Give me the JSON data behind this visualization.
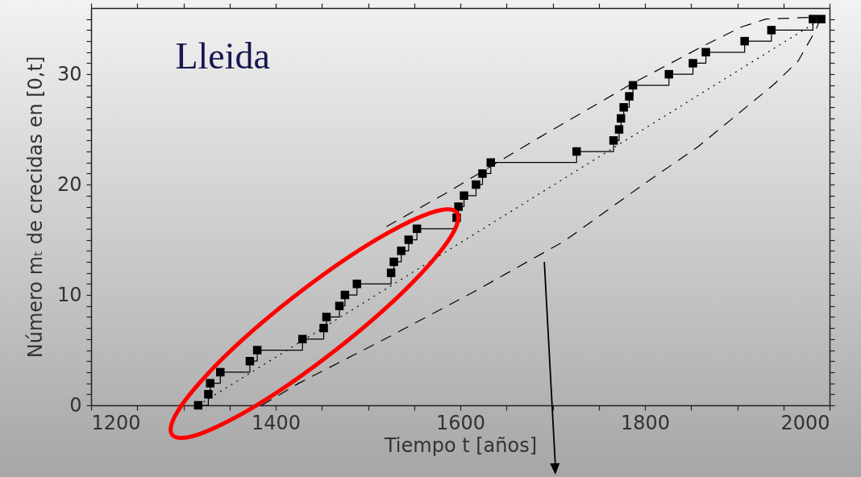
{
  "chart_data": {
    "type": "step",
    "title": "Lleida",
    "xlabel": "Tiempo t [años]",
    "ylabel": "Número mₜ de crecidas en [0,t]",
    "xlim": [
      1200,
      2000
    ],
    "ylim": [
      0,
      36
    ],
    "xticks": [
      1200,
      {
        "value": 1250,
        "label": null
      },
      {
        "value": 1300,
        "label": null
      },
      {
        "value": 1350,
        "label": null
      },
      1400,
      {
        "value": 1450,
        "label": null
      },
      {
        "value": 1500,
        "label": null
      },
      {
        "value": 1550,
        "label": null
      },
      1600,
      {
        "value": 1650,
        "label": null
      },
      {
        "value": 1700,
        "label": null
      },
      {
        "value": 1750,
        "label": null
      },
      1800,
      {
        "value": 1850,
        "label": null
      },
      {
        "value": 1900,
        "label": null
      },
      {
        "value": 1950,
        "label": null
      },
      2000
    ],
    "yticks": [
      0,
      {
        "value": 1,
        "label": null
      },
      {
        "value": 2,
        "label": null
      },
      {
        "value": 3,
        "label": null
      },
      {
        "value": 4,
        "label": null
      },
      {
        "value": 5,
        "label": null
      },
      {
        "value": 6,
        "label": null
      },
      {
        "value": 7,
        "label": null
      },
      {
        "value": 8,
        "label": null
      },
      {
        "value": 9,
        "label": null
      },
      10,
      {
        "value": 11,
        "label": null
      },
      {
        "value": 12,
        "label": null
      },
      {
        "value": 13,
        "label": null
      },
      {
        "value": 14,
        "label": null
      },
      {
        "value": 15,
        "label": null
      },
      {
        "value": 16,
        "label": null
      },
      {
        "value": 17,
        "label": null
      },
      {
        "value": 18,
        "label": null
      },
      {
        "value": 19,
        "label": null
      },
      20,
      {
        "value": 21,
        "label": null
      },
      {
        "value": 22,
        "label": null
      },
      {
        "value": 23,
        "label": null
      },
      {
        "value": 24,
        "label": null
      },
      {
        "value": 25,
        "label": null
      },
      {
        "value": 26,
        "label": null
      },
      {
        "value": 27,
        "label": null
      },
      {
        "value": 28,
        "label": null
      },
      {
        "value": 29,
        "label": null
      },
      30,
      {
        "value": 31,
        "label": null
      },
      {
        "value": 32,
        "label": null
      },
      {
        "value": 33,
        "label": null
      },
      {
        "value": 34,
        "label": null
      },
      {
        "value": 35,
        "label": null
      }
    ],
    "series": [
      {
        "type": "step",
        "color": "#000000",
        "marker": "square",
        "line_style": "solid",
        "x": [
          1316,
          1327,
          1329,
          1340,
          1372,
          1380,
          1429,
          1452,
          1455,
          1469,
          1475,
          1488,
          1525,
          1528,
          1536,
          1544,
          1553,
          1596,
          1598,
          1604,
          1617,
          1624,
          1633,
          1726,
          1766,
          1772,
          1774,
          1777,
          1783,
          1787,
          1826,
          1852,
          1866,
          1908,
          1937,
          1982,
          1991
        ],
        "values": [
          0,
          1,
          2,
          3,
          4,
          5,
          6,
          7,
          8,
          9,
          10,
          11,
          12,
          13,
          14,
          15,
          16,
          17,
          18,
          19,
          20,
          21,
          22,
          23,
          24,
          25,
          26,
          27,
          28,
          29,
          30,
          31,
          32,
          33,
          34,
          35,
          35
        ]
      },
      {
        "type": "line",
        "color": "#000000",
        "marker": "none",
        "line_style": "dotted",
        "x": [
          1316,
          1991
        ],
        "values": [
          0,
          35
        ]
      },
      {
        "type": "line",
        "color": "#000000",
        "marker": "none",
        "line_style": "dashed",
        "x": [
          1520,
          1584,
          1680,
          1785,
          1864,
          1905,
          1931,
          1990
        ],
        "values": [
          16.2,
          19.2,
          24.0,
          29.1,
          32.6,
          34.3,
          35,
          35.2
        ]
      },
      {
        "type": "line",
        "color": "#000000",
        "marker": "none",
        "line_style": "dashed",
        "x": [
          1385,
          1425,
          1525,
          1615,
          1713,
          1798,
          1857,
          1940,
          1966,
          1985,
          1990
        ],
        "values": [
          0,
          2,
          6.3,
          10.3,
          14.9,
          20.0,
          23.4,
          29.1,
          31.2,
          34,
          35
        ]
      }
    ]
  }
}
